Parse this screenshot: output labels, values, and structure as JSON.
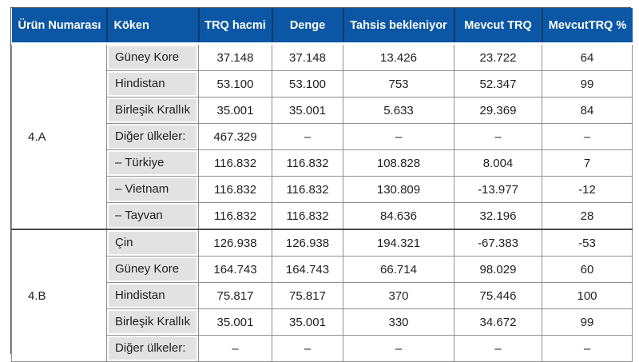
{
  "chart_data": {
    "type": "table",
    "columns": [
      {
        "key": "product-number",
        "label": "Ürün Numarası"
      },
      {
        "key": "origin",
        "label": "Köken"
      },
      {
        "key": "trq-volume",
        "label": "TRQ hacmi"
      },
      {
        "key": "balance",
        "label": "Denge"
      },
      {
        "key": "pending-allocation",
        "label": "Tahsis bekleniyor"
      },
      {
        "key": "available-trq",
        "label": "Mevcut TRQ"
      },
      {
        "key": "available-trq-percent",
        "label": "MevcutTRQ %"
      }
    ],
    "groups": [
      {
        "product_number": "4.A",
        "rows": [
          {
            "origin": "Güney Kore",
            "values": [
              "37.148",
              "37.148",
              "13.426",
              "23.722",
              "64"
            ]
          },
          {
            "origin": "Hindistan",
            "values": [
              "53.100",
              "53.100",
              "753",
              "52.347",
              "99"
            ]
          },
          {
            "origin": "Birleşik Krallık",
            "values": [
              "35.001",
              "35.001",
              "5.633",
              "29.369",
              "84"
            ]
          },
          {
            "origin": "Diğer ülkeler:",
            "values": [
              "467.329",
              "–",
              "–",
              "–",
              "–"
            ]
          },
          {
            "origin": "– Türkiye",
            "values": [
              "116.832",
              "116.832",
              "108.828",
              "8.004",
              "7"
            ]
          },
          {
            "origin": "– Vietnam",
            "values": [
              "116.832",
              "116.832",
              "130.809",
              "-13.977",
              "-12"
            ]
          },
          {
            "origin": "– Tayvan",
            "values": [
              "116.832",
              "116.832",
              "84.636",
              "32.196",
              "28"
            ]
          }
        ]
      },
      {
        "product_number": "4.B",
        "rows": [
          {
            "origin": "Çin",
            "values": [
              "126.938",
              "126.938",
              "194.321",
              "-67.383",
              "-53"
            ]
          },
          {
            "origin": "Güney Kore",
            "values": [
              "164.743",
              "164.743",
              "66.714",
              "98.029",
              "60"
            ]
          },
          {
            "origin": "Hindistan",
            "values": [
              "75.817",
              "75.817",
              "370",
              "75.446",
              "100"
            ]
          },
          {
            "origin": "Birleşik Krallık",
            "values": [
              "35.001",
              "35.001",
              "330",
              "34.672",
              "99"
            ]
          },
          {
            "origin": "Diğer ülkeler:",
            "values": [
              "–",
              "–",
              "–",
              "–",
              "–"
            ]
          }
        ]
      }
    ],
    "colors": {
      "header_bg": "#0b57a5",
      "header_text": "#ffffff",
      "header_divider": "#123a66",
      "origin_cell_bg": "#e2e2e2",
      "grid_line": "#8f8f8f",
      "outer_border": "#4c4c4c",
      "body_text": "#1f1f1f"
    }
  }
}
